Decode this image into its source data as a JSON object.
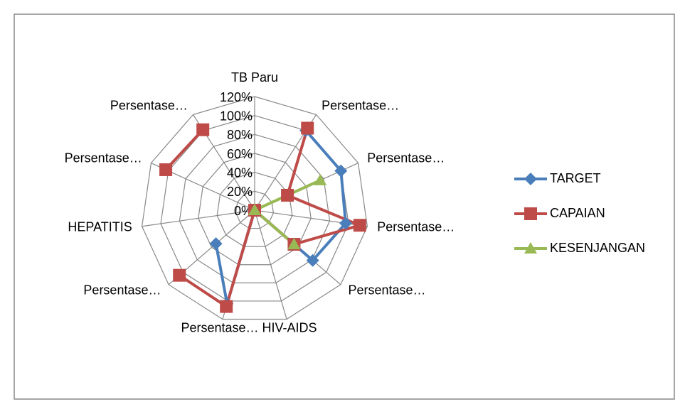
{
  "chart_data": {
    "type": "radar",
    "categories": [
      "TB Paru",
      "Persentase…",
      "Persentase…",
      "Persentase…",
      "Persentase…",
      "HIV-AIDS",
      "Persentase…",
      "Persentase…",
      "HEPATITIS",
      "Persentase…",
      "Persentase…"
    ],
    "series": [
      {
        "name": "TARGET",
        "color": "#4a7ebb",
        "marker": "diamond",
        "values": [
          null,
          100,
          100,
          97,
          81,
          0,
          103,
          54,
          null,
          null,
          null
        ]
      },
      {
        "name": "CAPAIAN",
        "color": "#be4b48",
        "marker": "square",
        "values": [
          null,
          103,
          38,
          112,
          55,
          0,
          106,
          105,
          null,
          103,
          101
        ]
      },
      {
        "name": "KESENJANGAN",
        "color": "#98b954",
        "marker": "triangle",
        "values": [
          null,
          0,
          76,
          0,
          55,
          0,
          null,
          null,
          null,
          null,
          null
        ]
      }
    ],
    "ylim": [
      0,
      120
    ],
    "yticks": [
      {
        "value": 0,
        "label": "0%"
      },
      {
        "value": 20,
        "label": "20%"
      },
      {
        "value": 40,
        "label": "40%"
      },
      {
        "value": 60,
        "label": "60%"
      },
      {
        "value": 80,
        "label": "80%"
      },
      {
        "value": 100,
        "label": "100%"
      },
      {
        "value": 120,
        "label": "120%"
      }
    ],
    "grid": true,
    "legend": "right"
  }
}
